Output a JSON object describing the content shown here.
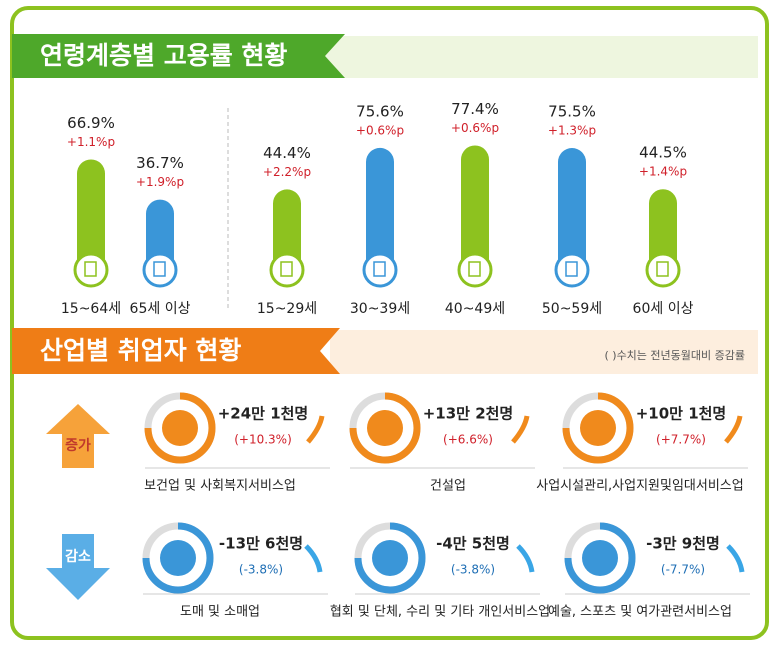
{
  "age_section": {
    "title": "연령계층별 고용률 현황",
    "categories": [
      "15~64세",
      "65세 이상",
      "15~29세",
      "30~39세",
      "40~49세",
      "50~59세",
      "60세 이상"
    ],
    "values": [
      66.9,
      36.7,
      44.4,
      75.6,
      77.4,
      75.5,
      44.5
    ],
    "value_labels": [
      "66.9%",
      "36.7%",
      "44.4%",
      "75.6%",
      "77.4%",
      "75.5%",
      "44.5%"
    ],
    "change_labels": [
      "+1.1%p",
      "+1.9%p",
      "+2.2%p",
      "+0.6%p",
      "+0.6%p",
      "+1.3%p",
      "+1.4%p"
    ],
    "colors": [
      "#8dc21f",
      "#3a96d8",
      "#8dc21f",
      "#3a96d8",
      "#8dc21f",
      "#3a96d8",
      "#8dc21f"
    ]
  },
  "industry_section": {
    "title": "산업별 취업자 현황",
    "note": "( )수치는 전년동월대비 증감률",
    "increase": {
      "label": "증가",
      "items": [
        {
          "amount": "+24만 1천명",
          "rate": "(+10.3%)",
          "name": "보건업 및 사회복지서비스업"
        },
        {
          "amount": "+13만 2천명",
          "rate": "(+6.6%)",
          "name": "건설업"
        },
        {
          "amount": "+10만 1천명",
          "rate": "(+7.7%)",
          "name": "사업시설관리,사업지원및임대서비스업"
        }
      ]
    },
    "decrease": {
      "label": "감소",
      "items": [
        {
          "amount": "-13만 6천명",
          "rate": "(-3.8%)",
          "name": "도매 및 소매업"
        },
        {
          "amount": "-4만 5천명",
          "rate": "(-3.8%)",
          "name": "협회 및 단체, 수리 및 기타 개인서비스업"
        },
        {
          "amount": "-3만 9천명",
          "rate": "(-7.7%)",
          "name": "예술, 스포츠 및 여가관련서비스업"
        }
      ]
    }
  }
}
